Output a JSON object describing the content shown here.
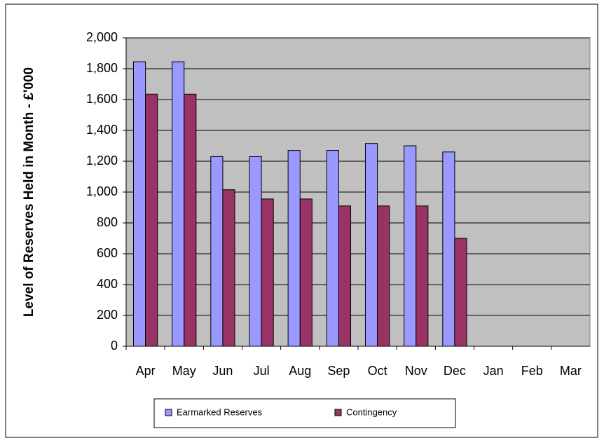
{
  "chart_data": {
    "type": "bar",
    "y_label": "Level of Reserves Held in Month - £'000",
    "categories": [
      "Apr",
      "May",
      "Jun",
      "Jul",
      "Aug",
      "Sep",
      "Oct",
      "Nov",
      "Dec",
      "Jan",
      "Feb",
      "Mar"
    ],
    "series": [
      {
        "name": "Earmarked Reserves",
        "color": "#9999ff",
        "values": [
          1845,
          1845,
          1230,
          1230,
          1270,
          1270,
          1315,
          1300,
          1260,
          null,
          null,
          null
        ]
      },
      {
        "name": "Contingency",
        "color": "#993366",
        "values": [
          1635,
          1635,
          1015,
          955,
          955,
          910,
          910,
          910,
          700,
          null,
          null,
          null
        ]
      }
    ],
    "ylim": [
      0,
      2000
    ],
    "yticks": [
      0,
      {
        "value": 200,
        "label": "200"
      },
      {
        "value": 400,
        "label": "400"
      },
      {
        "value": 600,
        "label": "600"
      },
      {
        "value": 800,
        "label": "800"
      },
      {
        "value": 1000,
        "label": "1,000"
      },
      {
        "value": 1200,
        "label": "1,200"
      },
      {
        "value": 1400,
        "label": "1,400"
      },
      {
        "value": 1600,
        "label": "1,600"
      },
      {
        "value": 1800,
        "label": "1,800"
      },
      {
        "value": 2000,
        "label": "2,000"
      }
    ],
    "grid": true,
    "legend": "bottom",
    "plot_background": "#c0c0c0"
  }
}
